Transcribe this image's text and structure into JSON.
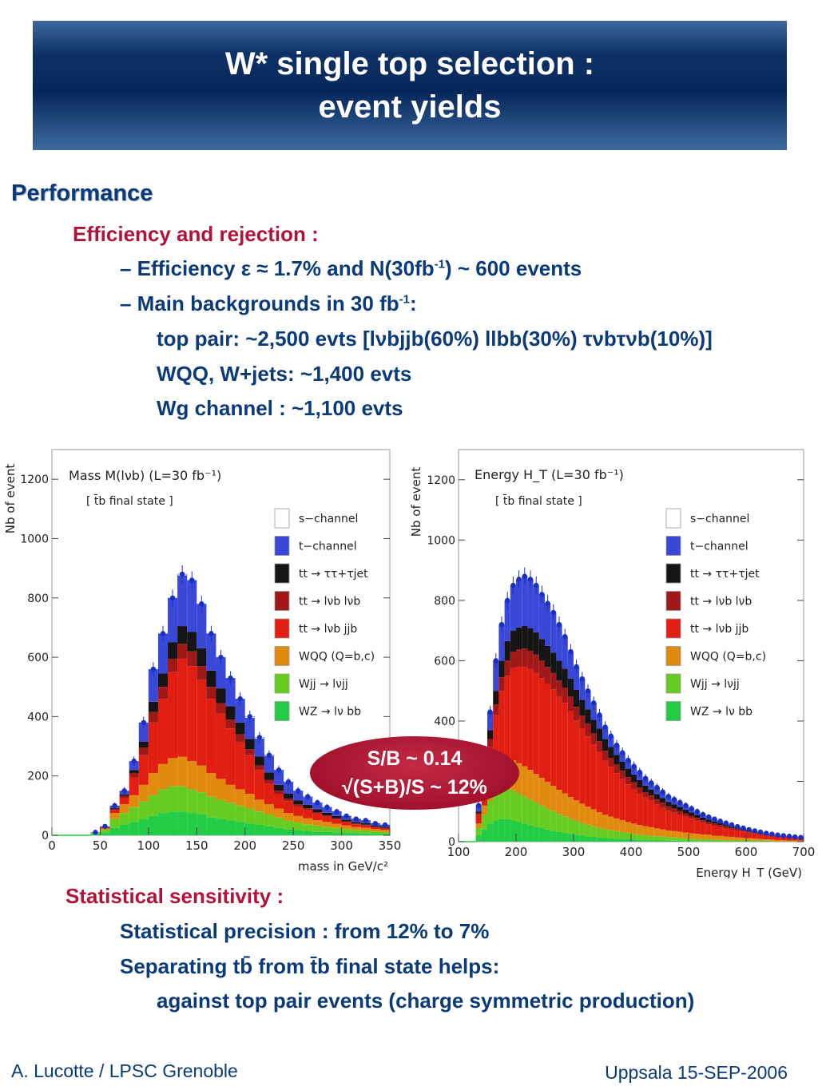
{
  "header": {
    "title_line1": "W* single top selection :",
    "title_line2": "event yields"
  },
  "section_title": "Performance",
  "efficiency": {
    "heading": "Efficiency and rejection :",
    "line1_a": "– Efficiency ε ≈ 1.7%  and  N(30fb",
    "line1_sup": "-1",
    "line1_b": ") ~ 600 events",
    "line2_a": "– Main backgrounds in 30 fb",
    "line2_sup": "-1",
    "line2_b": ":",
    "line3": "top pair: ~2,500 evts [lνbjjb(60%) llbb(30%) τνbτνb(10%)]",
    "line4": "WQQ, W+jets: ~1,400 evts",
    "line5": "Wg channel : ~1,100 evts"
  },
  "bubble": {
    "line1": "S/B ~ 0.14",
    "line2": "√(S+B)/S ~ 12%"
  },
  "sensitivity": {
    "heading": "Statistical sensitivity :",
    "line1": "Statistical precision : from 12% to 7%",
    "line2": "Separating tb̄ from t̄b final state helps:",
    "line3": "against top pair events (charge symmetric production)"
  },
  "footer": {
    "left": "A. Lucotte / LPSC Grenoble",
    "right": "Uppsala 15-SEP-2006"
  },
  "legend": [
    {
      "name": "s−channel",
      "color": "#ffffff"
    },
    {
      "name": "t−channel",
      "color": "#3a48d8"
    },
    {
      "name": "tt → ττ+τjet",
      "color": "#151515"
    },
    {
      "name": "tt → lνb lνb",
      "color": "#a01818"
    },
    {
      "name": "tt → lνb jjb",
      "color": "#e01e12"
    },
    {
      "name": "WQQ (Q=b,c)",
      "color": "#e08a10"
    },
    {
      "name": "Wjj → lνjj",
      "color": "#66cc22"
    },
    {
      "name": "WZ → lν bb",
      "color": "#22cc44"
    }
  ],
  "chart_data": [
    {
      "type": "area",
      "title": "Mass M(lνb) (L=30 fb⁻¹)",
      "subtitle": "[ t̄b final state ]",
      "xlabel": "mass in GeV/c²",
      "ylabel": "Nb of event",
      "xlim": [
        0,
        350
      ],
      "ylim": [
        0,
        1300
      ],
      "xticks": [
        "0",
        "50",
        "100",
        "150",
        "200",
        "250",
        "300",
        "350"
      ],
      "yticks": [
        "0",
        "200",
        "400",
        "600",
        "800",
        "1000",
        "1200"
      ],
      "stacked": true,
      "x": [
        45,
        55,
        65,
        75,
        85,
        95,
        105,
        115,
        125,
        135,
        145,
        155,
        165,
        175,
        185,
        195,
        205,
        215,
        225,
        235,
        245,
        255,
        265,
        275,
        285,
        295,
        305,
        315,
        325,
        335,
        345
      ],
      "total": [
        10,
        30,
        100,
        150,
        250,
        380,
        560,
        680,
        800,
        880,
        860,
        780,
        680,
        600,
        530,
        460,
        400,
        330,
        270,
        220,
        180,
        150,
        130,
        110,
        95,
        80,
        65,
        55,
        50,
        40,
        35
      ],
      "series": [
        {
          "name": "WZ → lν bb",
          "values": [
            5,
            10,
            25,
            35,
            45,
            55,
            65,
            75,
            80,
            80,
            75,
            70,
            60,
            55,
            50,
            45,
            40,
            35,
            30,
            25,
            20,
            18,
            15,
            13,
            11,
            10,
            8,
            7,
            6,
            5,
            4
          ]
        },
        {
          "name": "Wjj → lνjj",
          "values": [
            3,
            8,
            30,
            40,
            50,
            60,
            70,
            80,
            85,
            85,
            80,
            75,
            70,
            65,
            60,
            55,
            50,
            45,
            40,
            35,
            30,
            25,
            22,
            20,
            18,
            15,
            13,
            11,
            10,
            8,
            7
          ]
        },
        {
          "name": "WQQ (Q=b,c)",
          "values": [
            1,
            5,
            20,
            30,
            40,
            55,
            75,
            85,
            95,
            100,
            95,
            90,
            80,
            70,
            60,
            55,
            50,
            40,
            35,
            30,
            25,
            22,
            20,
            18,
            16,
            14,
            12,
            10,
            9,
            8,
            7
          ]
        },
        {
          "name": "tt → lνb jjb",
          "values": [
            1,
            3,
            10,
            20,
            60,
            100,
            170,
            220,
            290,
            330,
            320,
            290,
            250,
            220,
            190,
            160,
            130,
            100,
            70,
            50,
            40,
            32,
            28,
            22,
            18,
            14,
            11,
            9,
            8,
            6,
            5
          ]
        },
        {
          "name": "tt → lνb lνb",
          "values": [
            0,
            1,
            4,
            8,
            15,
            25,
            35,
            40,
            45,
            50,
            50,
            45,
            40,
            35,
            30,
            25,
            20,
            15,
            12,
            10,
            8,
            7,
            6,
            5,
            4,
            4,
            3,
            3,
            3,
            2,
            2
          ]
        },
        {
          "name": "tt → ττ+τjet",
          "values": [
            0,
            1,
            3,
            5,
            10,
            20,
            35,
            45,
            55,
            60,
            65,
            60,
            55,
            50,
            45,
            40,
            35,
            30,
            25,
            20,
            17,
            14,
            12,
            10,
            9,
            8,
            6,
            5,
            5,
            4,
            4
          ]
        },
        {
          "name": "t−channel",
          "values": [
            0,
            2,
            8,
            12,
            30,
            65,
            110,
            135,
            150,
            170,
            175,
            150,
            125,
            105,
            95,
            80,
            70,
            60,
            55,
            48,
            38,
            30,
            25,
            20,
            17,
            14,
            11,
            9,
            8,
            6,
            5
          ]
        }
      ]
    },
    {
      "type": "area",
      "title": "Energy H_T (L=30 fb⁻¹)",
      "subtitle": "[ t̄b final state ]",
      "xlabel": "Energy H_T (GeV)",
      "ylabel": "Nb of event",
      "xlim": [
        100,
        700
      ],
      "ylim": [
        0,
        1300
      ],
      "xticks": [
        "100",
        "200",
        "300",
        "400",
        "500",
        "600",
        "700"
      ],
      "yticks": [
        "0",
        "200",
        "400",
        "600",
        "800",
        "1000",
        "1200"
      ],
      "stacked": true,
      "x": [
        135,
        145,
        155,
        165,
        175,
        185,
        195,
        205,
        215,
        225,
        235,
        245,
        255,
        265,
        275,
        285,
        295,
        305,
        315,
        325,
        335,
        345,
        355,
        365,
        375,
        385,
        395,
        405,
        415,
        425,
        435,
        445,
        455,
        465,
        475,
        485,
        495,
        505,
        515,
        525,
        535,
        545,
        555,
        565,
        575,
        585,
        595,
        605,
        615,
        625,
        635,
        645,
        655,
        665,
        675,
        685,
        695
      ],
      "total": [
        120,
        250,
        430,
        600,
        720,
        800,
        850,
        870,
        880,
        870,
        850,
        820,
        790,
        760,
        720,
        680,
        630,
        580,
        540,
        500,
        460,
        420,
        380,
        350,
        320,
        295,
        270,
        250,
        230,
        210,
        195,
        180,
        165,
        150,
        140,
        130,
        120,
        110,
        100,
        90,
        82,
        75,
        68,
        62,
        56,
        50,
        45,
        40,
        36,
        32,
        28,
        25,
        22,
        20,
        18,
        16,
        14
      ],
      "series": [
        {
          "name": "WZ → lν bb",
          "values": [
            20,
            40,
            60,
            70,
            75,
            75,
            70,
            65,
            60,
            55,
            50,
            45,
            40,
            36,
            32,
            29,
            26,
            23,
            20,
            18,
            16,
            14,
            12,
            11,
            10,
            9,
            8,
            7,
            6,
            5,
            5,
            4,
            4,
            3,
            3,
            3,
            2,
            2,
            2,
            2,
            2,
            1,
            1,
            1,
            1,
            1,
            1,
            1,
            1,
            1,
            1,
            0,
            0,
            0,
            0,
            0,
            0
          ]
        },
        {
          "name": "Wjj → lνjj",
          "values": [
            25,
            50,
            75,
            90,
            100,
            100,
            100,
            95,
            90,
            85,
            80,
            75,
            70,
            65,
            60,
            55,
            50,
            46,
            42,
            38,
            35,
            32,
            29,
            27,
            25,
            23,
            21,
            19,
            17,
            16,
            15,
            14,
            13,
            12,
            11,
            10,
            9,
            8,
            7,
            6,
            6,
            5,
            5,
            4,
            4,
            3,
            3,
            3,
            2,
            2,
            2,
            2,
            1,
            1,
            1,
            1,
            1
          ]
        },
        {
          "name": "WQQ (Q=b,c)",
          "values": [
            15,
            30,
            50,
            70,
            85,
            95,
            100,
            100,
            100,
            98,
            95,
            92,
            88,
            84,
            80,
            76,
            72,
            68,
            64,
            60,
            56,
            52,
            48,
            45,
            42,
            39,
            36,
            34,
            32,
            30,
            28,
            26,
            24,
            22,
            21,
            20,
            19,
            18,
            17,
            16,
            15,
            14,
            13,
            12,
            11,
            10,
            9,
            8,
            7,
            6,
            5,
            5,
            4,
            4,
            3,
            3,
            3
          ]
        },
        {
          "name": "tt → lνb jjb",
          "values": [
            30,
            70,
            130,
            190,
            240,
            280,
            305,
            320,
            330,
            335,
            335,
            330,
            325,
            320,
            310,
            300,
            285,
            265,
            250,
            235,
            215,
            200,
            180,
            165,
            150,
            138,
            125,
            115,
            105,
            95,
            88,
            80,
            73,
            66,
            62,
            57,
            53,
            48,
            44,
            39,
            35,
            33,
            30,
            28,
            25,
            23,
            21,
            18,
            17,
            15,
            13,
            12,
            11,
            10,
            9,
            8,
            7
          ]
        },
        {
          "name": "tt → lνb lνb",
          "values": [
            5,
            15,
            25,
            35,
            45,
            50,
            55,
            58,
            60,
            60,
            60,
            58,
            56,
            54,
            52,
            50,
            48,
            45,
            42,
            40,
            37,
            35,
            32,
            30,
            28,
            26,
            24,
            22,
            20,
            18,
            17,
            16,
            15,
            14,
            13,
            12,
            11,
            10,
            9,
            8,
            7,
            7,
            6,
            6,
            5,
            5,
            4,
            4,
            4,
            3,
            3,
            3,
            3,
            3,
            3,
            3,
            2
          ]
        },
        {
          "name": "tt → ττ+τjet",
          "values": [
            5,
            15,
            30,
            45,
            55,
            65,
            70,
            72,
            75,
            75,
            74,
            72,
            70,
            68,
            66,
            63,
            60,
            56,
            52,
            48,
            45,
            42,
            39,
            36,
            33,
            30,
            28,
            26,
            24,
            22,
            20,
            18,
            16,
            15,
            14,
            13,
            12,
            11,
            10,
            9,
            8,
            7,
            6,
            6,
            5,
            4,
            4,
            3,
            3,
            3,
            2,
            2,
            2,
            1,
            1,
            1,
            1
          ]
        },
        {
          "name": "t−channel",
          "values": [
            20,
            30,
            60,
            100,
            120,
            135,
            150,
            160,
            165,
            162,
            156,
            148,
            141,
            133,
            120,
            107,
            89,
            77,
            70,
            61,
            56,
            45,
            40,
            36,
            32,
            30,
            28,
            27,
            26,
            24,
            22,
            22,
            20,
            18,
            16,
            15,
            14,
            13,
            11,
            10,
            9,
            8,
            7,
            5,
            5,
            4,
            3,
            3,
            2,
            2,
            2,
            1,
            1,
            1,
            1,
            1,
            0
          ]
        }
      ]
    }
  ]
}
